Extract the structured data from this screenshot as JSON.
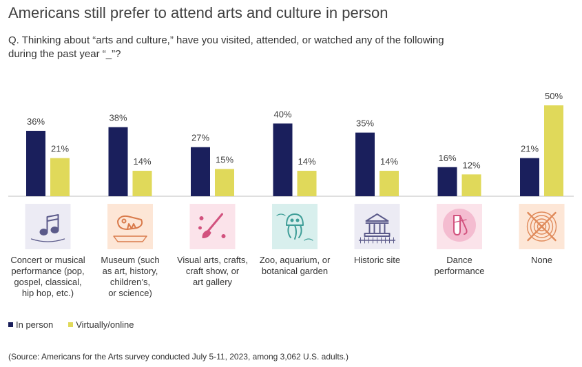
{
  "title": "Americans still prefer to attend arts and culture in person",
  "question": {
    "line1": "Q. Thinking about “arts and culture,” have you visited, attended, or watched any of the following",
    "line2": "during the past year “_”?"
  },
  "colors": {
    "in_person": "#1a1f5c",
    "virtual": "#e0d95a",
    "axis": "#bfbfbf"
  },
  "chart_data": {
    "type": "bar",
    "categories": [
      "Concert or musical performance (pop, gospel, classical, hip hop, etc.)",
      "Museum (such as art, history, children’s, or science)",
      "Visual arts, crafts, craft show, or art gallery",
      "Zoo, aquarium, or botanical garden",
      "Historic site",
      "Dance performance",
      "None"
    ],
    "category_lines": [
      [
        "Concert or musical",
        "performance (pop,",
        "gospel, classical,",
        "hip hop, etc.)"
      ],
      [
        "Museum (such",
        "as art, history,",
        "children’s,",
        "or science)"
      ],
      [
        "Visual arts, crafts,",
        "craft show, or",
        "art gallery"
      ],
      [
        "Zoo, aquarium, or",
        "botanical garden"
      ],
      [
        "Historic site"
      ],
      [
        "Dance",
        "performance"
      ],
      [
        "None"
      ]
    ],
    "icons": [
      "music-note-icon",
      "dinosaur-fossil-icon",
      "paintbrush-icon",
      "jellyfish-icon",
      "historic-building-icon",
      "ballet-shoes-icon",
      "none-crossed-icon"
    ],
    "icon_bg": [
      "#ecebf4",
      "#fde6d6",
      "#fbe3ea",
      "#d8efed",
      "#ecebf4",
      "#fbe3ea",
      "#fde6d6"
    ],
    "icon_fg": [
      "#5b5a8a",
      "#d97a4a",
      "#d2527e",
      "#3f9e98",
      "#5b5a8a",
      "#d2527e",
      "#e08a5a"
    ],
    "series": [
      {
        "name": "In person",
        "values": [
          36,
          38,
          27,
          40,
          35,
          16,
          21
        ]
      },
      {
        "name": "Virtually/online",
        "values": [
          21,
          14,
          15,
          14,
          14,
          12,
          50
        ]
      }
    ],
    "value_suffix": "%",
    "ylim": [
      0,
      50
    ],
    "legend_position": "bottom-left",
    "grid": false
  },
  "source": "(Source: Americans for the Arts survey conducted July 5-11, 2023, among 3,062 U.S. adults.)"
}
